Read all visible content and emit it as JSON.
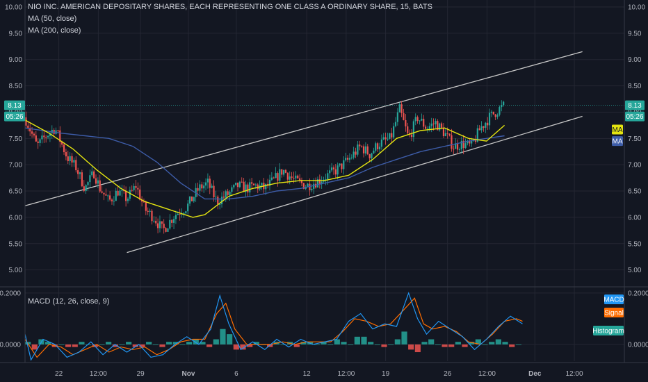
{
  "header": {
    "title": "NIO INC. AMERICAN DEPOSITARY SHARES, EACH REPRESENTING ONE CLASS A ORDINARY SHARE, 15, BATS",
    "ma50_label": "MA (50, close)",
    "ma200_label": "MA (200, close)"
  },
  "macd_panel": {
    "label": "MACD (12, 26, close, 9)",
    "tags": {
      "macd": "MACD",
      "signal": "Signal",
      "histogram": "Histogram"
    }
  },
  "price_tags": {
    "last_price": "8.13",
    "countdown": "05:26",
    "ma_left": "MA",
    "ma_right": "MA"
  },
  "colors": {
    "background": "#131722",
    "grid": "#242733",
    "candle_up": "#26a69a",
    "candle_down": "#ef5350",
    "ma50": "#e5e510",
    "ma200": "#3d5ca8",
    "channel": "#c8c8c8",
    "macd": "#2196f3",
    "signal": "#ff6d00",
    "hist_up": "#26a69a",
    "hist_down": "#ef5350"
  },
  "chart_data": [
    {
      "type": "candlestick",
      "title": "NIO INC. AMERICAN DEPOSITARY SHARES, EACH REPRESENTING ONE CLASS A ORDINARY SHARE, 15, BATS",
      "y_ticks": [
        "10.00",
        "9.50",
        "9.00",
        "8.50",
        "8.00",
        "7.50",
        "7.00",
        "6.50",
        "6.00",
        "5.50",
        "5.00"
      ],
      "ylim": [
        4.85,
        10.0
      ],
      "x_ticks": [
        "22",
        "12:00",
        "29",
        "Nov",
        "6",
        "12",
        "12:00",
        "19",
        "26",
        "12:00",
        "Dec",
        "12:00"
      ],
      "x_tick_bold": [
        false,
        false,
        false,
        true,
        false,
        false,
        false,
        false,
        false,
        false,
        true,
        false
      ],
      "price_path": [
        [
          0,
          7.9
        ],
        [
          0.02,
          7.35
        ],
        [
          0.035,
          7.55
        ],
        [
          0.05,
          7.7
        ],
        [
          0.07,
          7.15
        ],
        [
          0.085,
          6.95
        ],
        [
          0.1,
          6.55
        ],
        [
          0.115,
          6.85
        ],
        [
          0.125,
          6.55
        ],
        [
          0.14,
          6.3
        ],
        [
          0.155,
          6.5
        ],
        [
          0.17,
          6.35
        ],
        [
          0.185,
          6.6
        ],
        [
          0.2,
          6.15
        ],
        [
          0.215,
          6.0
        ],
        [
          0.23,
          5.75
        ],
        [
          0.25,
          6.05
        ],
        [
          0.27,
          6.2
        ],
        [
          0.29,
          6.55
        ],
        [
          0.305,
          6.65
        ],
        [
          0.32,
          6.3
        ],
        [
          0.34,
          6.45
        ],
        [
          0.355,
          6.6
        ],
        [
          0.37,
          6.55
        ],
        [
          0.385,
          6.6
        ],
        [
          0.4,
          6.55
        ],
        [
          0.415,
          6.7
        ],
        [
          0.43,
          6.9
        ],
        [
          0.45,
          6.7
        ],
        [
          0.47,
          6.6
        ],
        [
          0.49,
          6.7
        ],
        [
          0.505,
          6.8
        ],
        [
          0.52,
          6.9
        ],
        [
          0.54,
          7.1
        ],
        [
          0.56,
          7.35
        ],
        [
          0.575,
          7.2
        ],
        [
          0.59,
          7.4
        ],
        [
          0.61,
          7.5
        ],
        [
          0.625,
          8.05
        ],
        [
          0.64,
          7.5
        ],
        [
          0.655,
          7.9
        ],
        [
          0.67,
          7.7
        ],
        [
          0.685,
          7.8
        ],
        [
          0.7,
          7.6
        ],
        [
          0.715,
          7.35
        ],
        [
          0.73,
          7.4
        ],
        [
          0.745,
          7.35
        ],
        [
          0.76,
          7.7
        ],
        [
          0.775,
          7.9
        ],
        [
          0.79,
          8.05
        ],
        [
          0.8,
          8.13
        ]
      ],
      "ma50_path": [
        [
          0,
          7.85
        ],
        [
          0.04,
          7.6
        ],
        [
          0.08,
          7.3
        ],
        [
          0.12,
          6.9
        ],
        [
          0.16,
          6.55
        ],
        [
          0.2,
          6.3
        ],
        [
          0.24,
          6.15
        ],
        [
          0.28,
          6.0
        ],
        [
          0.3,
          6.05
        ],
        [
          0.34,
          6.4
        ],
        [
          0.38,
          6.55
        ],
        [
          0.42,
          6.65
        ],
        [
          0.46,
          6.7
        ],
        [
          0.5,
          6.7
        ],
        [
          0.54,
          6.8
        ],
        [
          0.58,
          7.1
        ],
        [
          0.62,
          7.5
        ],
        [
          0.66,
          7.65
        ],
        [
          0.7,
          7.7
        ],
        [
          0.74,
          7.5
        ],
        [
          0.77,
          7.45
        ],
        [
          0.8,
          7.75
        ]
      ],
      "ma200_path": [
        [
          0,
          7.7
        ],
        [
          0.06,
          7.6
        ],
        [
          0.1,
          7.55
        ],
        [
          0.14,
          7.5
        ],
        [
          0.18,
          7.35
        ],
        [
          0.22,
          7.05
        ],
        [
          0.26,
          6.65
        ],
        [
          0.3,
          6.35
        ],
        [
          0.34,
          6.35
        ],
        [
          0.38,
          6.4
        ],
        [
          0.42,
          6.5
        ],
        [
          0.46,
          6.55
        ],
        [
          0.5,
          6.65
        ],
        [
          0.54,
          6.75
        ],
        [
          0.58,
          6.95
        ],
        [
          0.62,
          7.1
        ],
        [
          0.66,
          7.25
        ],
        [
          0.7,
          7.35
        ],
        [
          0.74,
          7.45
        ],
        [
          0.77,
          7.5
        ],
        [
          0.8,
          7.55
        ]
      ],
      "channel_upper": [
        [
          0,
          6.22
        ],
        [
          0.93,
          9.15
        ]
      ],
      "channel_lower": [
        [
          0.17,
          5.33
        ],
        [
          0.93,
          7.92
        ]
      ],
      "last_price": 8.13
    },
    {
      "type": "macd",
      "title": "MACD (12, 26, close, 9)",
      "y_ticks": [
        "0.2000",
        "0.0000"
      ],
      "ylim": [
        -0.065,
        0.205
      ],
      "macd_path": [
        [
          0,
          0.04
        ],
        [
          0.01,
          -0.06
        ],
        [
          0.03,
          0.02
        ],
        [
          0.05,
          0.0
        ],
        [
          0.07,
          -0.05
        ],
        [
          0.09,
          -0.03
        ],
        [
          0.11,
          0.01
        ],
        [
          0.13,
          -0.04
        ],
        [
          0.15,
          0.0
        ],
        [
          0.17,
          -0.03
        ],
        [
          0.19,
          0.0
        ],
        [
          0.21,
          -0.05
        ],
        [
          0.23,
          -0.04
        ],
        [
          0.25,
          0.0
        ],
        [
          0.27,
          0.03
        ],
        [
          0.29,
          0.0
        ],
        [
          0.31,
          0.06
        ],
        [
          0.325,
          0.19
        ],
        [
          0.34,
          0.08
        ],
        [
          0.36,
          -0.02
        ],
        [
          0.38,
          0.01
        ],
        [
          0.4,
          -0.02
        ],
        [
          0.42,
          0.02
        ],
        [
          0.44,
          -0.01
        ],
        [
          0.46,
          0.02
        ],
        [
          0.48,
          0.0
        ],
        [
          0.5,
          0.01
        ],
        [
          0.52,
          0.02
        ],
        [
          0.54,
          0.09
        ],
        [
          0.56,
          0.12
        ],
        [
          0.58,
          0.06
        ],
        [
          0.6,
          0.08
        ],
        [
          0.62,
          0.07
        ],
        [
          0.64,
          0.2
        ],
        [
          0.655,
          0.1
        ],
        [
          0.67,
          0.04
        ],
        [
          0.69,
          0.09
        ],
        [
          0.71,
          0.06
        ],
        [
          0.73,
          0.03
        ],
        [
          0.75,
          -0.02
        ],
        [
          0.77,
          0.02
        ],
        [
          0.79,
          0.07
        ],
        [
          0.81,
          0.11
        ],
        [
          0.83,
          0.08
        ]
      ],
      "signal_path": [
        [
          0,
          0.02
        ],
        [
          0.02,
          -0.05
        ],
        [
          0.04,
          0.0
        ],
        [
          0.06,
          -0.01
        ],
        [
          0.08,
          -0.04
        ],
        [
          0.1,
          -0.02
        ],
        [
          0.12,
          0.0
        ],
        [
          0.14,
          -0.03
        ],
        [
          0.16,
          -0.01
        ],
        [
          0.18,
          -0.02
        ],
        [
          0.2,
          -0.01
        ],
        [
          0.22,
          -0.04
        ],
        [
          0.24,
          -0.02
        ],
        [
          0.26,
          0.01
        ],
        [
          0.28,
          0.02
        ],
        [
          0.3,
          0.02
        ],
        [
          0.32,
          0.12
        ],
        [
          0.335,
          0.16
        ],
        [
          0.35,
          0.06
        ],
        [
          0.37,
          0.0
        ],
        [
          0.39,
          0.0
        ],
        [
          0.41,
          0.0
        ],
        [
          0.43,
          0.01
        ],
        [
          0.45,
          0.0
        ],
        [
          0.47,
          0.01
        ],
        [
          0.49,
          0.01
        ],
        [
          0.51,
          0.01
        ],
        [
          0.53,
          0.05
        ],
        [
          0.55,
          0.1
        ],
        [
          0.57,
          0.09
        ],
        [
          0.59,
          0.07
        ],
        [
          0.61,
          0.08
        ],
        [
          0.63,
          0.13
        ],
        [
          0.65,
          0.18
        ],
        [
          0.665,
          0.08
        ],
        [
          0.68,
          0.06
        ],
        [
          0.7,
          0.07
        ],
        [
          0.72,
          0.05
        ],
        [
          0.74,
          0.01
        ],
        [
          0.76,
          0.0
        ],
        [
          0.78,
          0.04
        ],
        [
          0.8,
          0.09
        ],
        [
          0.82,
          0.1
        ],
        [
          0.83,
          0.09
        ]
      ],
      "histogram": [
        0.01,
        -0.02,
        0.02,
        0.01,
        -0.01,
        0.0,
        -0.01,
        -0.01,
        0.01,
        0.0,
        -0.01,
        0.0,
        0.01,
        -0.01,
        0.0,
        0.01,
        -0.01,
        -0.01,
        0.01,
        0.0,
        -0.01,
        0.01,
        0.01,
        0.0,
        0.01,
        0.02,
        0.01,
        -0.01,
        0.02,
        0.06,
        0.04,
        -0.02,
        -0.02,
        -0.01,
        0.01,
        0.0,
        -0.01,
        0.01,
        0.0,
        0.01,
        -0.01,
        0.01,
        0.01,
        0.0,
        0.01,
        0.0,
        0.02,
        0.01,
        0.0,
        0.03,
        0.03,
        0.01,
        0.0,
        -0.01,
        0.0,
        0.02,
        0.05,
        -0.02,
        -0.03,
        0.01,
        0.02,
        0.0,
        -0.01,
        -0.01,
        0.01,
        -0.01,
        0.01,
        0.02,
        0.0,
        0.01,
        0.02,
        0.01,
        -0.01,
        0.0
      ]
    }
  ]
}
